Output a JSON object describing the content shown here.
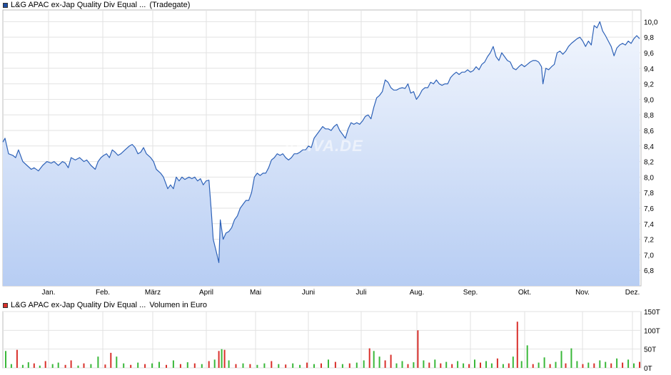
{
  "price_chart": {
    "legend_swatch_color": "#1f4fa3",
    "title": "L&G APAC ex-Jap Quality Div Equal ...",
    "exchange": "(Tradegate)",
    "line_color": "#2e62b8",
    "watermark": "ARIVA.DE"
  },
  "volume_chart": {
    "legend_swatch_color": "#d9302b",
    "title": "L&G APAC ex-Jap Quality Div Equal ...",
    "unit_label": "Volumen in Euro",
    "up_color": "#3ab83a",
    "down_color": "#d9302b"
  },
  "chart_data": [
    {
      "type": "area",
      "name": "price",
      "x_labels": [
        "Jan.",
        "Feb.",
        "März",
        "April",
        "Mai",
        "Juni",
        "Juli",
        "Aug.",
        "Sep.",
        "Okt.",
        "Nov.",
        "Dez."
      ],
      "y_ticks": [
        "6,8",
        "7,0",
        "7,2",
        "7,4",
        "7,6",
        "7,8",
        "8,0",
        "8,2",
        "8,4",
        "8,6",
        "8,8",
        "9,0",
        "9,2",
        "9,4",
        "9,6",
        "9,8",
        "10,0"
      ],
      "ylim": [
        6.6,
        10.15
      ],
      "grid": true,
      "points": [
        [
          0,
          8.45
        ],
        [
          3,
          8.5
        ],
        [
          8,
          8.3
        ],
        [
          14,
          8.28
        ],
        [
          18,
          8.25
        ],
        [
          22,
          8.35
        ],
        [
          28,
          8.2
        ],
        [
          34,
          8.15
        ],
        [
          40,
          8.1
        ],
        [
          44,
          8.12
        ],
        [
          50,
          8.08
        ],
        [
          56,
          8.15
        ],
        [
          62,
          8.2
        ],
        [
          68,
          8.18
        ],
        [
          72,
          8.2
        ],
        [
          78,
          8.15
        ],
        [
          84,
          8.2
        ],
        [
          88,
          8.18
        ],
        [
          92,
          8.12
        ],
        [
          96,
          8.25
        ],
        [
          102,
          8.22
        ],
        [
          108,
          8.25
        ],
        [
          114,
          8.2
        ],
        [
          118,
          8.22
        ],
        [
          124,
          8.15
        ],
        [
          130,
          8.1
        ],
        [
          134,
          8.2
        ],
        [
          138,
          8.25
        ],
        [
          142,
          8.28
        ],
        [
          146,
          8.3
        ],
        [
          150,
          8.25
        ],
        [
          154,
          8.35
        ],
        [
          158,
          8.32
        ],
        [
          162,
          8.28
        ],
        [
          166,
          8.3
        ],
        [
          172,
          8.35
        ],
        [
          178,
          8.4
        ],
        [
          182,
          8.42
        ],
        [
          186,
          8.38
        ],
        [
          190,
          8.3
        ],
        [
          194,
          8.32
        ],
        [
          198,
          8.38
        ],
        [
          202,
          8.3
        ],
        [
          208,
          8.25
        ],
        [
          212,
          8.2
        ],
        [
          216,
          8.1
        ],
        [
          222,
          8.05
        ],
        [
          226,
          8.0
        ],
        [
          232,
          7.85
        ],
        [
          236,
          7.9
        ],
        [
          240,
          7.85
        ],
        [
          244,
          8.0
        ],
        [
          248,
          7.95
        ],
        [
          252,
          8.0
        ],
        [
          256,
          7.97
        ],
        [
          262,
          8.0
        ],
        [
          266,
          7.98
        ],
        [
          270,
          8.0
        ],
        [
          274,
          7.95
        ],
        [
          278,
          7.98
        ],
        [
          282,
          7.9
        ],
        [
          286,
          7.95
        ],
        [
          290,
          7.96
        ],
        [
          293,
          7.6
        ],
        [
          296,
          7.2
        ],
        [
          300,
          7.05
        ],
        [
          304,
          6.9
        ],
        [
          306,
          7.45
        ],
        [
          310,
          7.2
        ],
        [
          314,
          7.28
        ],
        [
          318,
          7.3
        ],
        [
          322,
          7.35
        ],
        [
          326,
          7.45
        ],
        [
          330,
          7.5
        ],
        [
          334,
          7.6
        ],
        [
          338,
          7.65
        ],
        [
          342,
          7.7
        ],
        [
          346,
          7.7
        ],
        [
          350,
          7.8
        ],
        [
          354,
          8.0
        ],
        [
          358,
          8.05
        ],
        [
          362,
          8.02
        ],
        [
          366,
          8.05
        ],
        [
          370,
          8.05
        ],
        [
          374,
          8.12
        ],
        [
          378,
          8.22
        ],
        [
          382,
          8.25
        ],
        [
          386,
          8.3
        ],
        [
          390,
          8.28
        ],
        [
          394,
          8.3
        ],
        [
          398,
          8.25
        ],
        [
          402,
          8.22
        ],
        [
          406,
          8.25
        ],
        [
          410,
          8.3
        ],
        [
          414,
          8.3
        ],
        [
          418,
          8.32
        ],
        [
          422,
          8.35
        ],
        [
          426,
          8.35
        ],
        [
          430,
          8.4
        ],
        [
          434,
          8.38
        ],
        [
          438,
          8.5
        ],
        [
          442,
          8.55
        ],
        [
          446,
          8.6
        ],
        [
          450,
          8.65
        ],
        [
          454,
          8.62
        ],
        [
          458,
          8.62
        ],
        [
          462,
          8.6
        ],
        [
          466,
          8.65
        ],
        [
          470,
          8.68
        ],
        [
          474,
          8.6
        ],
        [
          478,
          8.55
        ],
        [
          482,
          8.5
        ],
        [
          486,
          8.62
        ],
        [
          490,
          8.7
        ],
        [
          494,
          8.68
        ],
        [
          498,
          8.7
        ],
        [
          502,
          8.68
        ],
        [
          506,
          8.72
        ],
        [
          510,
          8.78
        ],
        [
          514,
          8.8
        ],
        [
          518,
          8.75
        ],
        [
          522,
          8.9
        ],
        [
          526,
          9.02
        ],
        [
          530,
          9.05
        ],
        [
          534,
          9.1
        ],
        [
          538,
          9.25
        ],
        [
          542,
          9.22
        ],
        [
          546,
          9.15
        ],
        [
          550,
          9.12
        ],
        [
          554,
          9.12
        ],
        [
          558,
          9.14
        ],
        [
          562,
          9.15
        ],
        [
          566,
          9.14
        ],
        [
          570,
          9.2
        ],
        [
          574,
          9.08
        ],
        [
          578,
          9.1
        ],
        [
          582,
          9.0
        ],
        [
          586,
          9.05
        ],
        [
          590,
          9.12
        ],
        [
          594,
          9.15
        ],
        [
          598,
          9.15
        ],
        [
          602,
          9.22
        ],
        [
          606,
          9.2
        ],
        [
          610,
          9.25
        ],
        [
          614,
          9.2
        ],
        [
          618,
          9.18
        ],
        [
          622,
          9.2
        ],
        [
          626,
          9.2
        ],
        [
          630,
          9.28
        ],
        [
          634,
          9.32
        ],
        [
          638,
          9.35
        ],
        [
          642,
          9.32
        ],
        [
          646,
          9.35
        ],
        [
          650,
          9.35
        ],
        [
          654,
          9.38
        ],
        [
          658,
          9.35
        ],
        [
          662,
          9.37
        ],
        [
          666,
          9.42
        ],
        [
          670,
          9.38
        ],
        [
          674,
          9.45
        ],
        [
          678,
          9.48
        ],
        [
          682,
          9.55
        ],
        [
          686,
          9.6
        ],
        [
          690,
          9.68
        ],
        [
          694,
          9.55
        ],
        [
          698,
          9.5
        ],
        [
          702,
          9.6
        ],
        [
          706,
          9.55
        ],
        [
          710,
          9.5
        ],
        [
          714,
          9.48
        ],
        [
          718,
          9.4
        ],
        [
          722,
          9.38
        ],
        [
          726,
          9.42
        ],
        [
          730,
          9.45
        ],
        [
          734,
          9.42
        ],
        [
          738,
          9.45
        ],
        [
          742,
          9.48
        ],
        [
          746,
          9.5
        ],
        [
          750,
          9.5
        ],
        [
          754,
          9.48
        ],
        [
          758,
          9.42
        ],
        [
          760,
          9.2
        ],
        [
          764,
          9.4
        ],
        [
          768,
          9.38
        ],
        [
          772,
          9.42
        ],
        [
          776,
          9.45
        ],
        [
          780,
          9.6
        ],
        [
          784,
          9.62
        ],
        [
          788,
          9.58
        ],
        [
          792,
          9.62
        ],
        [
          796,
          9.68
        ],
        [
          800,
          9.72
        ],
        [
          804,
          9.75
        ],
        [
          808,
          9.78
        ],
        [
          812,
          9.8
        ],
        [
          816,
          9.75
        ],
        [
          820,
          9.68
        ],
        [
          824,
          9.75
        ],
        [
          828,
          9.7
        ],
        [
          832,
          9.95
        ],
        [
          836,
          9.92
        ],
        [
          840,
          10.0
        ],
        [
          844,
          9.88
        ],
        [
          848,
          9.82
        ],
        [
          852,
          9.75
        ],
        [
          856,
          9.68
        ],
        [
          860,
          9.56
        ],
        [
          864,
          9.66
        ],
        [
          868,
          9.7
        ],
        [
          872,
          9.72
        ],
        [
          876,
          9.7
        ],
        [
          880,
          9.75
        ],
        [
          884,
          9.72
        ],
        [
          888,
          9.78
        ],
        [
          892,
          9.82
        ],
        [
          896,
          9.78
        ]
      ]
    },
    {
      "type": "bar",
      "name": "volume",
      "y_ticks": [
        "0T",
        "50T",
        "100T",
        "150T"
      ],
      "ylim": [
        0,
        150
      ],
      "grid": true,
      "bars": [
        [
          4,
          45,
          "up"
        ],
        [
          12,
          10,
          "up"
        ],
        [
          20,
          48,
          "down"
        ],
        [
          28,
          8,
          "up"
        ],
        [
          36,
          15,
          "up"
        ],
        [
          44,
          12,
          "down"
        ],
        [
          52,
          6,
          "up"
        ],
        [
          60,
          18,
          "down"
        ],
        [
          70,
          10,
          "up"
        ],
        [
          78,
          14,
          "up"
        ],
        [
          88,
          8,
          "down"
        ],
        [
          96,
          20,
          "down"
        ],
        [
          106,
          6,
          "up"
        ],
        [
          114,
          12,
          "down"
        ],
        [
          124,
          10,
          "up"
        ],
        [
          134,
          30,
          "up"
        ],
        [
          144,
          9,
          "down"
        ],
        [
          152,
          40,
          "down"
        ],
        [
          160,
          30,
          "up"
        ],
        [
          170,
          12,
          "up"
        ],
        [
          180,
          8,
          "down"
        ],
        [
          190,
          14,
          "up"
        ],
        [
          200,
          10,
          "down"
        ],
        [
          210,
          12,
          "up"
        ],
        [
          220,
          16,
          "up"
        ],
        [
          230,
          8,
          "down"
        ],
        [
          240,
          20,
          "up"
        ],
        [
          250,
          10,
          "down"
        ],
        [
          260,
          15,
          "up"
        ],
        [
          270,
          12,
          "down"
        ],
        [
          280,
          10,
          "up"
        ],
        [
          290,
          18,
          "down"
        ],
        [
          298,
          22,
          "up"
        ],
        [
          304,
          45,
          "down"
        ],
        [
          308,
          50,
          "up"
        ],
        [
          312,
          48,
          "down"
        ],
        [
          318,
          20,
          "up"
        ],
        [
          328,
          10,
          "down"
        ],
        [
          338,
          12,
          "up"
        ],
        [
          348,
          10,
          "down"
        ],
        [
          358,
          8,
          "up"
        ],
        [
          368,
          12,
          "up"
        ],
        [
          378,
          18,
          "down"
        ],
        [
          388,
          10,
          "up"
        ],
        [
          398,
          9,
          "down"
        ],
        [
          408,
          12,
          "up"
        ],
        [
          418,
          8,
          "up"
        ],
        [
          428,
          14,
          "down"
        ],
        [
          438,
          10,
          "up"
        ],
        [
          448,
          12,
          "down"
        ],
        [
          458,
          22,
          "up"
        ],
        [
          468,
          16,
          "down"
        ],
        [
          478,
          10,
          "up"
        ],
        [
          488,
          12,
          "down"
        ],
        [
          498,
          14,
          "up"
        ],
        [
          508,
          20,
          "up"
        ],
        [
          516,
          52,
          "down"
        ],
        [
          522,
          45,
          "up"
        ],
        [
          530,
          30,
          "up"
        ],
        [
          538,
          20,
          "down"
        ],
        [
          546,
          35,
          "down"
        ],
        [
          554,
          12,
          "up"
        ],
        [
          562,
          18,
          "up"
        ],
        [
          570,
          10,
          "down"
        ],
        [
          578,
          15,
          "up"
        ],
        [
          584,
          100,
          "down"
        ],
        [
          592,
          20,
          "up"
        ],
        [
          600,
          14,
          "down"
        ],
        [
          608,
          22,
          "up"
        ],
        [
          616,
          12,
          "down"
        ],
        [
          624,
          16,
          "up"
        ],
        [
          632,
          10,
          "down"
        ],
        [
          640,
          18,
          "up"
        ],
        [
          648,
          12,
          "up"
        ],
        [
          656,
          10,
          "down"
        ],
        [
          664,
          22,
          "up"
        ],
        [
          672,
          14,
          "down"
        ],
        [
          680,
          18,
          "up"
        ],
        [
          688,
          12,
          "up"
        ],
        [
          696,
          25,
          "down"
        ],
        [
          704,
          10,
          "up"
        ],
        [
          712,
          12,
          "down"
        ],
        [
          718,
          30,
          "up"
        ],
        [
          724,
          123,
          "down"
        ],
        [
          730,
          18,
          "up"
        ],
        [
          738,
          60,
          "up"
        ],
        [
          746,
          10,
          "down"
        ],
        [
          754,
          14,
          "up"
        ],
        [
          762,
          28,
          "up"
        ],
        [
          770,
          10,
          "down"
        ],
        [
          778,
          16,
          "up"
        ],
        [
          786,
          45,
          "up"
        ],
        [
          792,
          12,
          "down"
        ],
        [
          800,
          52,
          "up"
        ],
        [
          808,
          18,
          "up"
        ],
        [
          816,
          10,
          "down"
        ],
        [
          824,
          14,
          "up"
        ],
        [
          832,
          12,
          "down"
        ],
        [
          840,
          20,
          "up"
        ],
        [
          848,
          16,
          "up"
        ],
        [
          856,
          12,
          "down"
        ],
        [
          864,
          25,
          "up"
        ],
        [
          872,
          14,
          "down"
        ],
        [
          880,
          22,
          "up"
        ],
        [
          888,
          12,
          "up"
        ],
        [
          896,
          16,
          "down"
        ]
      ]
    }
  ]
}
